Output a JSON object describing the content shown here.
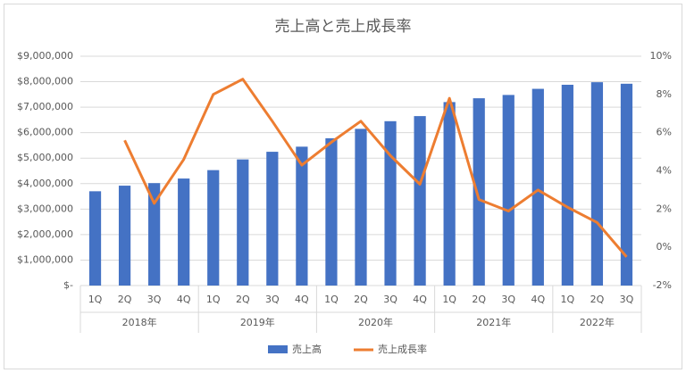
{
  "chart_data": {
    "type": "bar-line",
    "title": "売上高と売上成長率",
    "category_groups": [
      {
        "label": "2018年",
        "categories": [
          "1Q",
          "2Q",
          "3Q",
          "4Q"
        ]
      },
      {
        "label": "2019年",
        "categories": [
          "1Q",
          "2Q",
          "3Q",
          "4Q"
        ]
      },
      {
        "label": "2020年",
        "categories": [
          "1Q",
          "2Q",
          "3Q",
          "4Q"
        ]
      },
      {
        "label": "2021年",
        "categories": [
          "1Q",
          "2Q",
          "3Q",
          "4Q"
        ]
      },
      {
        "label": "2022年",
        "categories": [
          "1Q",
          "2Q",
          "3Q"
        ]
      }
    ],
    "series": [
      {
        "name": "売上高",
        "type": "bar",
        "color": "#4472c4",
        "values": [
          3700000,
          3920000,
          4020000,
          4200000,
          4530000,
          4950000,
          5250000,
          5450000,
          5780000,
          6150000,
          6450000,
          6650000,
          7200000,
          7350000,
          7480000,
          7720000,
          7880000,
          7980000,
          7920000
        ]
      },
      {
        "name": "売上成長率",
        "type": "line",
        "axis": "y2",
        "color": "#ed7d31",
        "values": [
          null,
          5.6,
          2.3,
          4.6,
          8.0,
          8.8,
          6.6,
          4.3,
          5.5,
          6.6,
          4.8,
          3.3,
          7.8,
          2.5,
          1.9,
          3.0,
          2.1,
          1.3,
          -0.5
        ]
      }
    ],
    "ylim": [
      0,
      9000000
    ],
    "yticks": [
      {
        "value": 0,
        "label": "$-"
      },
      {
        "value": 1000000,
        "label": "$1,000,000"
      },
      {
        "value": 2000000,
        "label": "$2,000,000"
      },
      {
        "value": 3000000,
        "label": "$3,000,000"
      },
      {
        "value": 4000000,
        "label": "$4,000,000"
      },
      {
        "value": 5000000,
        "label": "$5,000,000"
      },
      {
        "value": 6000000,
        "label": "$6,000,000"
      },
      {
        "value": 7000000,
        "label": "$7,000,000"
      },
      {
        "value": 8000000,
        "label": "$8,000,000"
      },
      {
        "value": 9000000,
        "label": "$9,000,000"
      }
    ],
    "y2lim": [
      -2,
      10
    ],
    "y2ticks": [
      {
        "value": -2,
        "label": "-2%"
      },
      {
        "value": 0,
        "label": "0%"
      },
      {
        "value": 2,
        "label": "2%"
      },
      {
        "value": 4,
        "label": "4%"
      },
      {
        "value": 6,
        "label": "6%"
      },
      {
        "value": 8,
        "label": "8%"
      },
      {
        "value": 10,
        "label": "10%"
      }
    ],
    "grid": true,
    "legend": "bottom"
  }
}
